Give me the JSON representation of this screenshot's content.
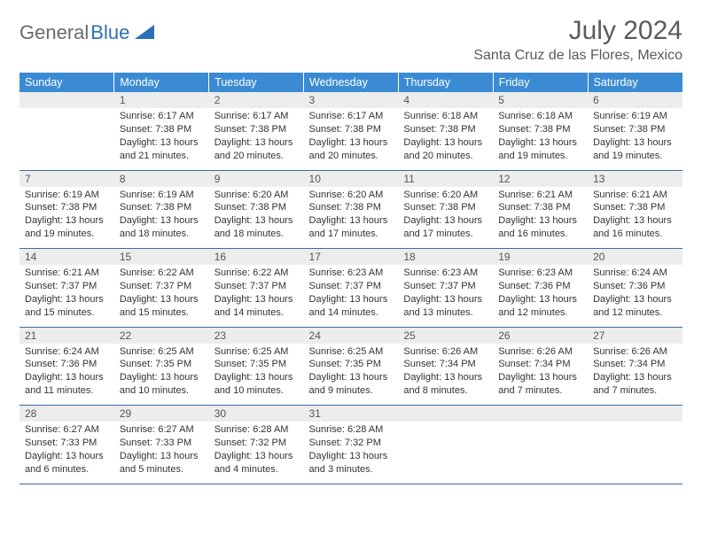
{
  "logo": {
    "part1": "General",
    "part2": "Blue"
  },
  "title": "July 2024",
  "location": "Santa Cruz de las Flores, Mexico",
  "header_bg": "#3b8bd4",
  "weekdays": [
    "Sunday",
    "Monday",
    "Tuesday",
    "Wednesday",
    "Thursday",
    "Friday",
    "Saturday"
  ],
  "weeks": [
    [
      null,
      {
        "d": "1",
        "sr": "6:17 AM",
        "ss": "7:38 PM",
        "dl": "13 hours and 21 minutes."
      },
      {
        "d": "2",
        "sr": "6:17 AM",
        "ss": "7:38 PM",
        "dl": "13 hours and 20 minutes."
      },
      {
        "d": "3",
        "sr": "6:17 AM",
        "ss": "7:38 PM",
        "dl": "13 hours and 20 minutes."
      },
      {
        "d": "4",
        "sr": "6:18 AM",
        "ss": "7:38 PM",
        "dl": "13 hours and 20 minutes."
      },
      {
        "d": "5",
        "sr": "6:18 AM",
        "ss": "7:38 PM",
        "dl": "13 hours and 19 minutes."
      },
      {
        "d": "6",
        "sr": "6:19 AM",
        "ss": "7:38 PM",
        "dl": "13 hours and 19 minutes."
      }
    ],
    [
      {
        "d": "7",
        "sr": "6:19 AM",
        "ss": "7:38 PM",
        "dl": "13 hours and 19 minutes."
      },
      {
        "d": "8",
        "sr": "6:19 AM",
        "ss": "7:38 PM",
        "dl": "13 hours and 18 minutes."
      },
      {
        "d": "9",
        "sr": "6:20 AM",
        "ss": "7:38 PM",
        "dl": "13 hours and 18 minutes."
      },
      {
        "d": "10",
        "sr": "6:20 AM",
        "ss": "7:38 PM",
        "dl": "13 hours and 17 minutes."
      },
      {
        "d": "11",
        "sr": "6:20 AM",
        "ss": "7:38 PM",
        "dl": "13 hours and 17 minutes."
      },
      {
        "d": "12",
        "sr": "6:21 AM",
        "ss": "7:38 PM",
        "dl": "13 hours and 16 minutes."
      },
      {
        "d": "13",
        "sr": "6:21 AM",
        "ss": "7:38 PM",
        "dl": "13 hours and 16 minutes."
      }
    ],
    [
      {
        "d": "14",
        "sr": "6:21 AM",
        "ss": "7:37 PM",
        "dl": "13 hours and 15 minutes."
      },
      {
        "d": "15",
        "sr": "6:22 AM",
        "ss": "7:37 PM",
        "dl": "13 hours and 15 minutes."
      },
      {
        "d": "16",
        "sr": "6:22 AM",
        "ss": "7:37 PM",
        "dl": "13 hours and 14 minutes."
      },
      {
        "d": "17",
        "sr": "6:23 AM",
        "ss": "7:37 PM",
        "dl": "13 hours and 14 minutes."
      },
      {
        "d": "18",
        "sr": "6:23 AM",
        "ss": "7:37 PM",
        "dl": "13 hours and 13 minutes."
      },
      {
        "d": "19",
        "sr": "6:23 AM",
        "ss": "7:36 PM",
        "dl": "13 hours and 12 minutes."
      },
      {
        "d": "20",
        "sr": "6:24 AM",
        "ss": "7:36 PM",
        "dl": "13 hours and 12 minutes."
      }
    ],
    [
      {
        "d": "21",
        "sr": "6:24 AM",
        "ss": "7:36 PM",
        "dl": "13 hours and 11 minutes."
      },
      {
        "d": "22",
        "sr": "6:25 AM",
        "ss": "7:35 PM",
        "dl": "13 hours and 10 minutes."
      },
      {
        "d": "23",
        "sr": "6:25 AM",
        "ss": "7:35 PM",
        "dl": "13 hours and 10 minutes."
      },
      {
        "d": "24",
        "sr": "6:25 AM",
        "ss": "7:35 PM",
        "dl": "13 hours and 9 minutes."
      },
      {
        "d": "25",
        "sr": "6:26 AM",
        "ss": "7:34 PM",
        "dl": "13 hours and 8 minutes."
      },
      {
        "d": "26",
        "sr": "6:26 AM",
        "ss": "7:34 PM",
        "dl": "13 hours and 7 minutes."
      },
      {
        "d": "27",
        "sr": "6:26 AM",
        "ss": "7:34 PM",
        "dl": "13 hours and 7 minutes."
      }
    ],
    [
      {
        "d": "28",
        "sr": "6:27 AM",
        "ss": "7:33 PM",
        "dl": "13 hours and 6 minutes."
      },
      {
        "d": "29",
        "sr": "6:27 AM",
        "ss": "7:33 PM",
        "dl": "13 hours and 5 minutes."
      },
      {
        "d": "30",
        "sr": "6:28 AM",
        "ss": "7:32 PM",
        "dl": "13 hours and 4 minutes."
      },
      {
        "d": "31",
        "sr": "6:28 AM",
        "ss": "7:32 PM",
        "dl": "13 hours and 3 minutes."
      },
      null,
      null,
      null
    ]
  ],
  "labels": {
    "sunrise": "Sunrise: ",
    "sunset": "Sunset: ",
    "daylight": "Daylight: "
  }
}
